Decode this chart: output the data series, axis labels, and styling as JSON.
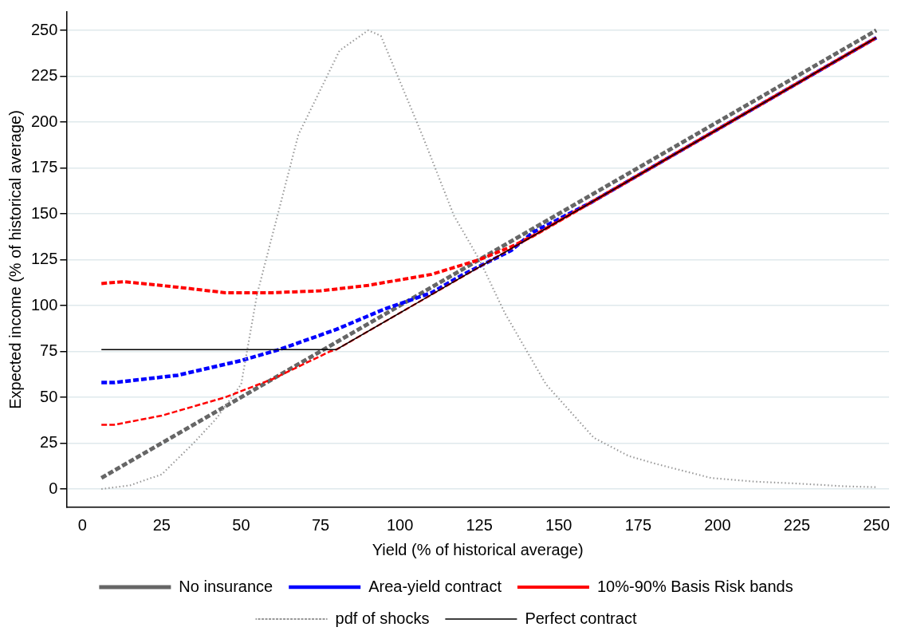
{
  "chart_data": {
    "type": "line",
    "xlabel": "Yield (% of historical average)",
    "ylabel": "Expected income (% of historical average)",
    "xlim": [
      -5,
      254
    ],
    "ylim": [
      -10,
      260
    ],
    "xticks": [
      0,
      25,
      50,
      75,
      100,
      125,
      150,
      175,
      200,
      225,
      250
    ],
    "yticks": [
      0,
      25,
      50,
      75,
      100,
      125,
      150,
      175,
      200,
      225,
      250
    ],
    "grid": "y",
    "legend": "bottom",
    "marker": "none",
    "series": [
      {
        "name": "No insurance",
        "color": "#666666",
        "line_style": "dashed",
        "x": [
          6,
          250
        ],
        "values": [
          6,
          250
        ]
      },
      {
        "name": "Area-yield contract",
        "color": "#0000ff",
        "line_style": "dashed",
        "x": [
          6,
          10,
          30,
          50,
          62,
          80,
          95,
          110,
          120,
          135,
          142,
          160,
          200,
          250
        ],
        "values": [
          58,
          58,
          62,
          70,
          76,
          87,
          98,
          107,
          117,
          130,
          140,
          156,
          196,
          246
        ]
      },
      {
        "name": "10%-90% Basis Risk bands",
        "color": "#ff0000",
        "line_style": "dashed",
        "x": [
          6,
          13,
          30,
          45,
          60,
          75,
          90,
          110,
          125,
          135,
          142,
          160,
          200,
          250
        ],
        "values": [
          112,
          113,
          110,
          107,
          107,
          108,
          111,
          117,
          125,
          132,
          138,
          156,
          196,
          246
        ]
      },
      {
        "name": "pdf of shocks",
        "color": "#999999",
        "line_style": "dotted",
        "x": [
          6,
          15,
          25,
          35,
          42,
          50,
          55,
          68,
          81,
          90,
          94,
          107,
          117,
          125,
          133,
          146,
          161,
          172,
          180,
          198,
          212,
          225,
          240,
          250
        ],
        "values": [
          0,
          2,
          8,
          25,
          38,
          57,
          106,
          193,
          239,
          250,
          247,
          193,
          149,
          125,
          96,
          57,
          28,
          18,
          14,
          6,
          4,
          3,
          1.5,
          1
        ]
      },
      {
        "name": "Perfect contract",
        "color": "#000000",
        "line_style": "solid",
        "x": [
          6,
          80,
          250
        ],
        "values": [
          76,
          76,
          246
        ]
      },
      {
        "color": "#ff0000",
        "line_style": "dashed",
        "x": [
          6,
          10,
          25,
          45,
          60,
          78,
          80,
          250
        ],
        "values": [
          35,
          35,
          40,
          50,
          60,
          75,
          76,
          246
        ]
      }
    ]
  }
}
